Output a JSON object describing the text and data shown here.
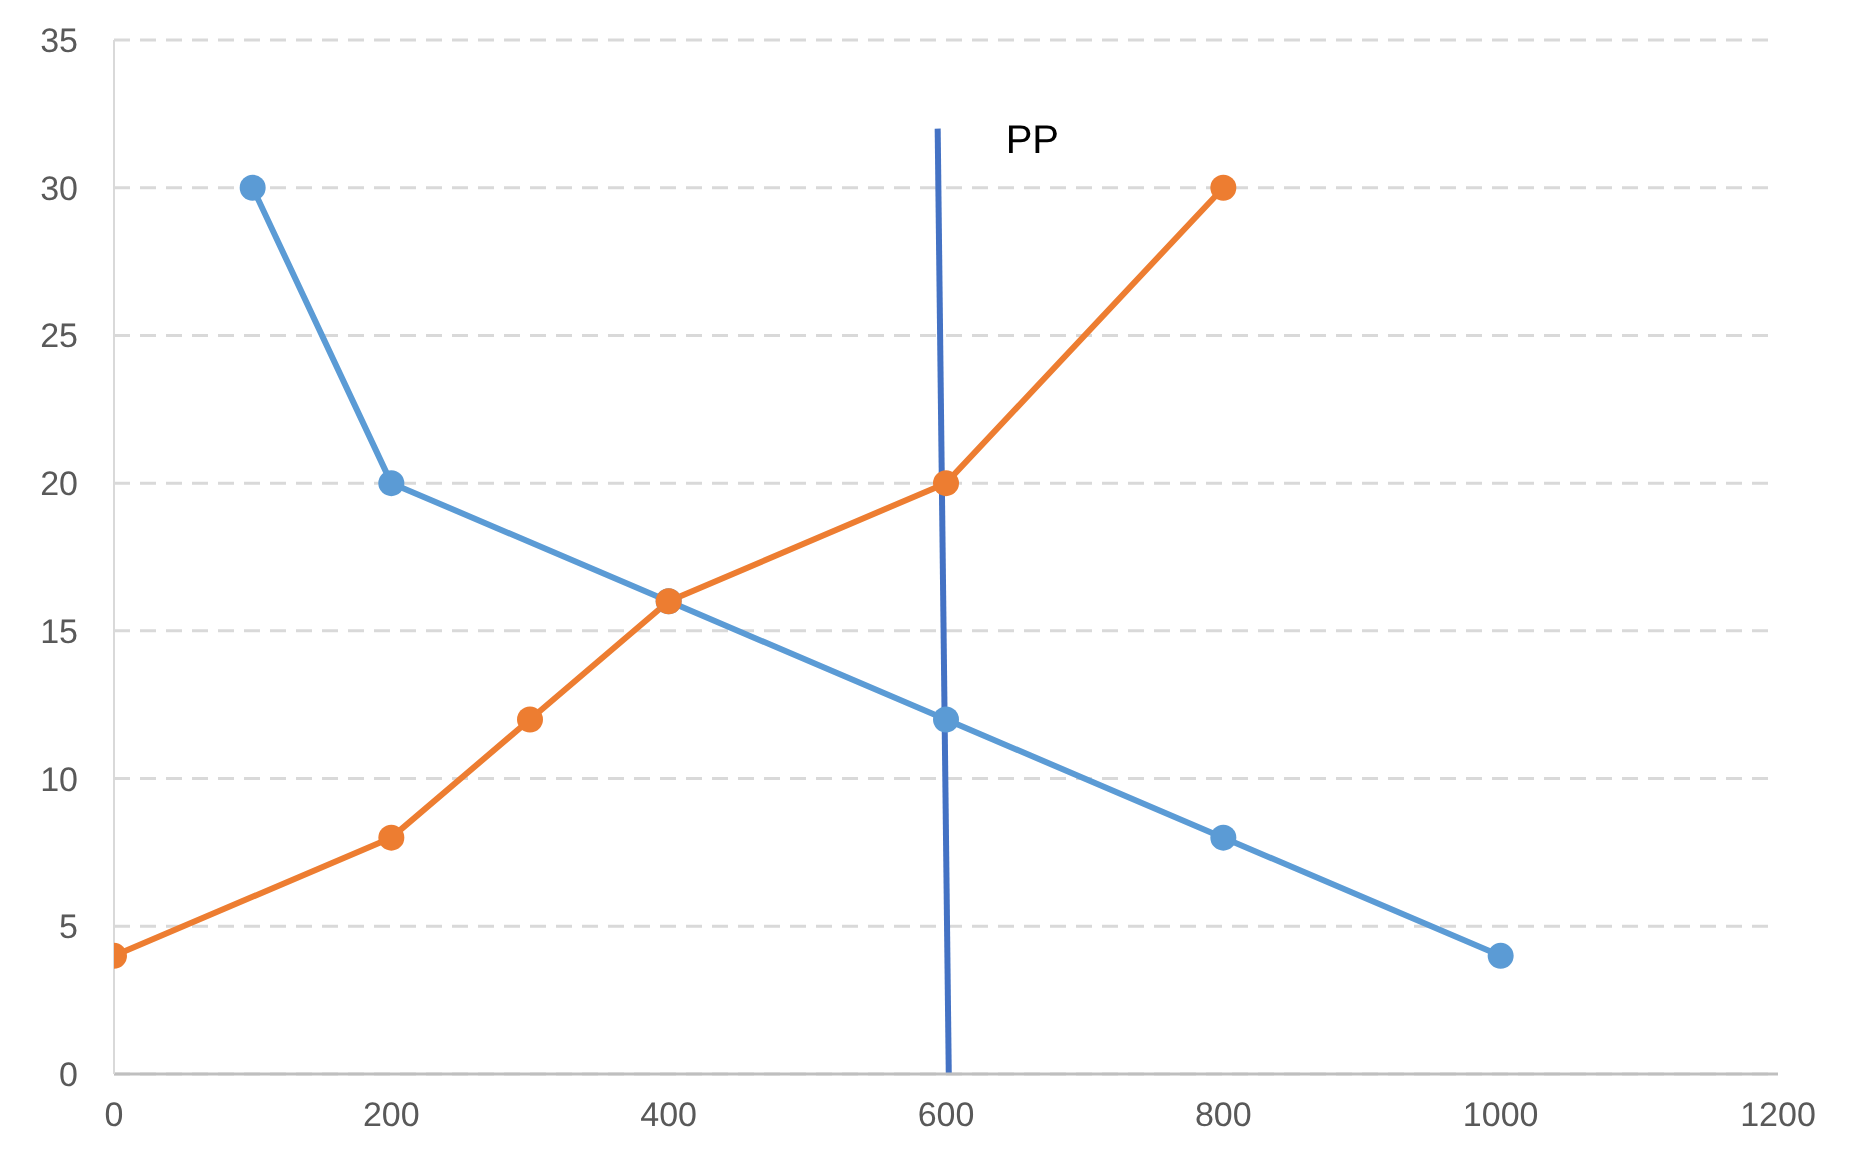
{
  "chart_data": {
    "type": "line",
    "xlim": [
      0,
      1200
    ],
    "xticks": [
      0,
      200,
      400,
      600,
      800,
      1000,
      1200
    ],
    "ylim": [
      0,
      35
    ],
    "yticks": [
      0,
      5,
      10,
      15,
      20,
      25,
      30,
      35
    ],
    "grid": "y",
    "legend": false,
    "marker": "circle",
    "series": [
      {
        "color": "#5b9bd5",
        "x": [
          100,
          200,
          400,
          600,
          800,
          1000
        ],
        "values": [
          30,
          20,
          16,
          12,
          8,
          4
        ]
      },
      {
        "color": "#ed7d31",
        "x": [
          0,
          200,
          300,
          400,
          600,
          800
        ],
        "values": [
          4,
          8,
          12,
          16,
          20,
          30
        ]
      },
      {
        "name": "PP",
        "color": "#4472c4",
        "marker": "none",
        "x": [
          594,
          602
        ],
        "values": [
          32,
          0
        ]
      }
    ]
  }
}
